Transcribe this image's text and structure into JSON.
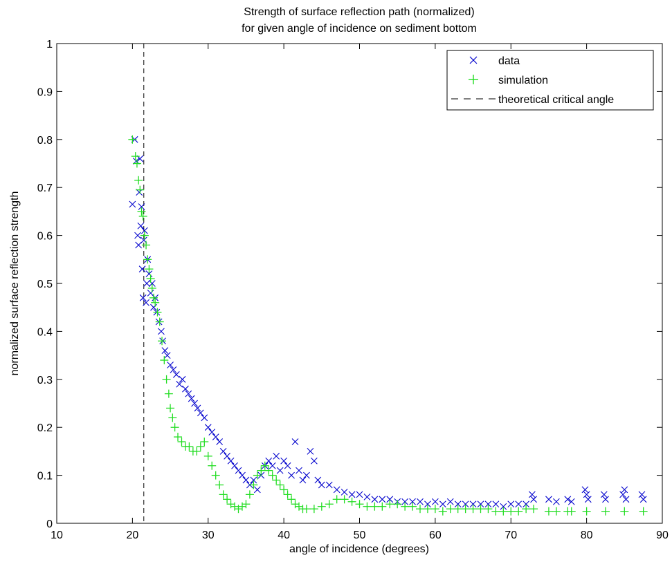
{
  "chart_data": {
    "type": "scatter",
    "title": "Strength of surface reflection path (normalized)",
    "subtitle": "for given angle of incidence on sediment bottom",
    "xlabel": "angle of incidence (degrees)",
    "ylabel": "normalized surface reflection strength",
    "xlim": [
      10,
      90
    ],
    "ylim": [
      0,
      1
    ],
    "xticks": [
      "10",
      "20",
      "30",
      "40",
      "50",
      "60",
      "70",
      "80",
      "90"
    ],
    "yticks": [
      "0",
      "0.1",
      "0.2",
      "0.3",
      "0.4",
      "0.5",
      "0.6",
      "0.7",
      "0.8",
      "0.9",
      "1"
    ],
    "grid": false,
    "legend_position": "top-right",
    "series": [
      {
        "name": "data",
        "marker": "x",
        "color": "#0000cc",
        "points": [
          [
            20.0,
            0.665
          ],
          [
            20.3,
            0.8
          ],
          [
            20.5,
            0.755
          ],
          [
            20.7,
            0.6
          ],
          [
            20.8,
            0.58
          ],
          [
            20.9,
            0.69
          ],
          [
            21.0,
            0.76
          ],
          [
            21.1,
            0.62
          ],
          [
            21.2,
            0.66
          ],
          [
            21.3,
            0.53
          ],
          [
            21.4,
            0.47
          ],
          [
            21.5,
            0.59
          ],
          [
            21.6,
            0.61
          ],
          [
            21.8,
            0.46
          ],
          [
            21.9,
            0.5
          ],
          [
            22.0,
            0.55
          ],
          [
            22.2,
            0.52
          ],
          [
            22.4,
            0.48
          ],
          [
            22.6,
            0.5
          ],
          [
            22.8,
            0.45
          ],
          [
            23.0,
            0.47
          ],
          [
            23.2,
            0.44
          ],
          [
            23.5,
            0.42
          ],
          [
            23.8,
            0.4
          ],
          [
            24.0,
            0.38
          ],
          [
            24.3,
            0.36
          ],
          [
            24.6,
            0.35
          ],
          [
            25.0,
            0.33
          ],
          [
            25.4,
            0.32
          ],
          [
            25.8,
            0.31
          ],
          [
            26.2,
            0.29
          ],
          [
            26.6,
            0.3
          ],
          [
            27.0,
            0.28
          ],
          [
            27.4,
            0.27
          ],
          [
            27.8,
            0.26
          ],
          [
            28.2,
            0.25
          ],
          [
            28.6,
            0.24
          ],
          [
            29.0,
            0.23
          ],
          [
            29.5,
            0.22
          ],
          [
            30.0,
            0.2
          ],
          [
            30.5,
            0.19
          ],
          [
            31.0,
            0.18
          ],
          [
            31.5,
            0.17
          ],
          [
            32.0,
            0.15
          ],
          [
            32.5,
            0.14
          ],
          [
            33.0,
            0.13
          ],
          [
            33.5,
            0.12
          ],
          [
            34.0,
            0.11
          ],
          [
            34.5,
            0.1
          ],
          [
            35.0,
            0.09
          ],
          [
            35.5,
            0.08
          ],
          [
            36.0,
            0.09
          ],
          [
            36.5,
            0.07
          ],
          [
            37.0,
            0.1
          ],
          [
            37.5,
            0.12
          ],
          [
            38.0,
            0.13
          ],
          [
            38.5,
            0.12
          ],
          [
            39.0,
            0.14
          ],
          [
            39.5,
            0.11
          ],
          [
            40.0,
            0.13
          ],
          [
            40.5,
            0.12
          ],
          [
            41.0,
            0.1
          ],
          [
            41.5,
            0.17
          ],
          [
            42.0,
            0.11
          ],
          [
            42.5,
            0.09
          ],
          [
            43.0,
            0.1
          ],
          [
            43.5,
            0.15
          ],
          [
            44.0,
            0.13
          ],
          [
            44.5,
            0.09
          ],
          [
            45.0,
            0.08
          ],
          [
            46.0,
            0.08
          ],
          [
            47.0,
            0.07
          ],
          [
            48.0,
            0.065
          ],
          [
            49.0,
            0.06
          ],
          [
            50.0,
            0.06
          ],
          [
            51.0,
            0.055
          ],
          [
            52.0,
            0.05
          ],
          [
            53.0,
            0.05
          ],
          [
            54.0,
            0.05
          ],
          [
            55.0,
            0.045
          ],
          [
            56.0,
            0.045
          ],
          [
            57.0,
            0.045
          ],
          [
            58.0,
            0.045
          ],
          [
            59.0,
            0.04
          ],
          [
            60.0,
            0.045
          ],
          [
            61.0,
            0.04
          ],
          [
            62.0,
            0.045
          ],
          [
            63.0,
            0.04
          ],
          [
            64.0,
            0.04
          ],
          [
            65.0,
            0.04
          ],
          [
            66.0,
            0.04
          ],
          [
            67.0,
            0.04
          ],
          [
            68.0,
            0.04
          ],
          [
            69.0,
            0.035
          ],
          [
            70.0,
            0.04
          ],
          [
            71.0,
            0.04
          ],
          [
            72.0,
            0.04
          ],
          [
            72.8,
            0.06
          ],
          [
            73.0,
            0.05
          ],
          [
            75.0,
            0.05
          ],
          [
            76.0,
            0.045
          ],
          [
            77.5,
            0.05
          ],
          [
            78.0,
            0.045
          ],
          [
            79.8,
            0.07
          ],
          [
            80.0,
            0.06
          ],
          [
            80.2,
            0.05
          ],
          [
            82.3,
            0.06
          ],
          [
            82.5,
            0.05
          ],
          [
            84.8,
            0.06
          ],
          [
            85.0,
            0.07
          ],
          [
            85.2,
            0.05
          ],
          [
            87.3,
            0.06
          ],
          [
            87.5,
            0.05
          ]
        ]
      },
      {
        "name": "simulation",
        "marker": "+",
        "color": "#22dd22",
        "points": [
          [
            20.0,
            0.8
          ],
          [
            20.4,
            0.765
          ],
          [
            20.6,
            0.75
          ],
          [
            20.8,
            0.715
          ],
          [
            21.0,
            0.695
          ],
          [
            21.2,
            0.65
          ],
          [
            21.4,
            0.64
          ],
          [
            21.6,
            0.6
          ],
          [
            21.8,
            0.58
          ],
          [
            22.0,
            0.55
          ],
          [
            22.2,
            0.53
          ],
          [
            22.4,
            0.51
          ],
          [
            22.6,
            0.49
          ],
          [
            22.8,
            0.47
          ],
          [
            23.0,
            0.46
          ],
          [
            23.3,
            0.44
          ],
          [
            23.6,
            0.42
          ],
          [
            23.9,
            0.38
          ],
          [
            24.2,
            0.34
          ],
          [
            24.5,
            0.3
          ],
          [
            24.8,
            0.27
          ],
          [
            25.0,
            0.24
          ],
          [
            25.3,
            0.22
          ],
          [
            25.6,
            0.2
          ],
          [
            26.0,
            0.18
          ],
          [
            26.5,
            0.17
          ],
          [
            27.0,
            0.16
          ],
          [
            27.5,
            0.16
          ],
          [
            28.0,
            0.15
          ],
          [
            28.5,
            0.15
          ],
          [
            29.0,
            0.16
          ],
          [
            29.5,
            0.17
          ],
          [
            30.0,
            0.14
          ],
          [
            30.5,
            0.12
          ],
          [
            31.0,
            0.1
          ],
          [
            31.5,
            0.08
          ],
          [
            32.0,
            0.06
          ],
          [
            32.5,
            0.05
          ],
          [
            33.0,
            0.04
          ],
          [
            33.5,
            0.035
          ],
          [
            34.0,
            0.03
          ],
          [
            34.5,
            0.035
          ],
          [
            35.0,
            0.04
          ],
          [
            35.5,
            0.06
          ],
          [
            36.0,
            0.08
          ],
          [
            36.5,
            0.1
          ],
          [
            37.0,
            0.11
          ],
          [
            37.5,
            0.12
          ],
          [
            38.0,
            0.11
          ],
          [
            38.5,
            0.1
          ],
          [
            39.0,
            0.09
          ],
          [
            39.5,
            0.08
          ],
          [
            40.0,
            0.07
          ],
          [
            40.5,
            0.06
          ],
          [
            41.0,
            0.05
          ],
          [
            41.5,
            0.04
          ],
          [
            42.0,
            0.035
          ],
          [
            42.5,
            0.03
          ],
          [
            43.0,
            0.03
          ],
          [
            44.0,
            0.03
          ],
          [
            45.0,
            0.035
          ],
          [
            46.0,
            0.04
          ],
          [
            47.0,
            0.05
          ],
          [
            48.0,
            0.05
          ],
          [
            49.0,
            0.045
          ],
          [
            50.0,
            0.04
          ],
          [
            51.0,
            0.035
          ],
          [
            52.0,
            0.035
          ],
          [
            53.0,
            0.035
          ],
          [
            54.0,
            0.04
          ],
          [
            55.0,
            0.04
          ],
          [
            56.0,
            0.035
          ],
          [
            57.0,
            0.035
          ],
          [
            58.0,
            0.03
          ],
          [
            59.0,
            0.03
          ],
          [
            60.0,
            0.03
          ],
          [
            61.0,
            0.025
          ],
          [
            62.0,
            0.03
          ],
          [
            63.0,
            0.03
          ],
          [
            64.0,
            0.03
          ],
          [
            65.0,
            0.03
          ],
          [
            66.0,
            0.03
          ],
          [
            67.0,
            0.03
          ],
          [
            68.0,
            0.025
          ],
          [
            69.0,
            0.025
          ],
          [
            70.0,
            0.025
          ],
          [
            71.0,
            0.025
          ],
          [
            72.0,
            0.03
          ],
          [
            73.0,
            0.03
          ],
          [
            75.0,
            0.025
          ],
          [
            76.0,
            0.025
          ],
          [
            77.5,
            0.025
          ],
          [
            78.0,
            0.025
          ],
          [
            80.0,
            0.025
          ],
          [
            82.5,
            0.025
          ],
          [
            85.0,
            0.025
          ],
          [
            87.5,
            0.025
          ]
        ]
      }
    ],
    "reference_lines": [
      {
        "name": "theoretical critical angle",
        "orientation": "vertical",
        "x": 21.5,
        "style": "dashed",
        "color": "#000000"
      }
    ]
  }
}
